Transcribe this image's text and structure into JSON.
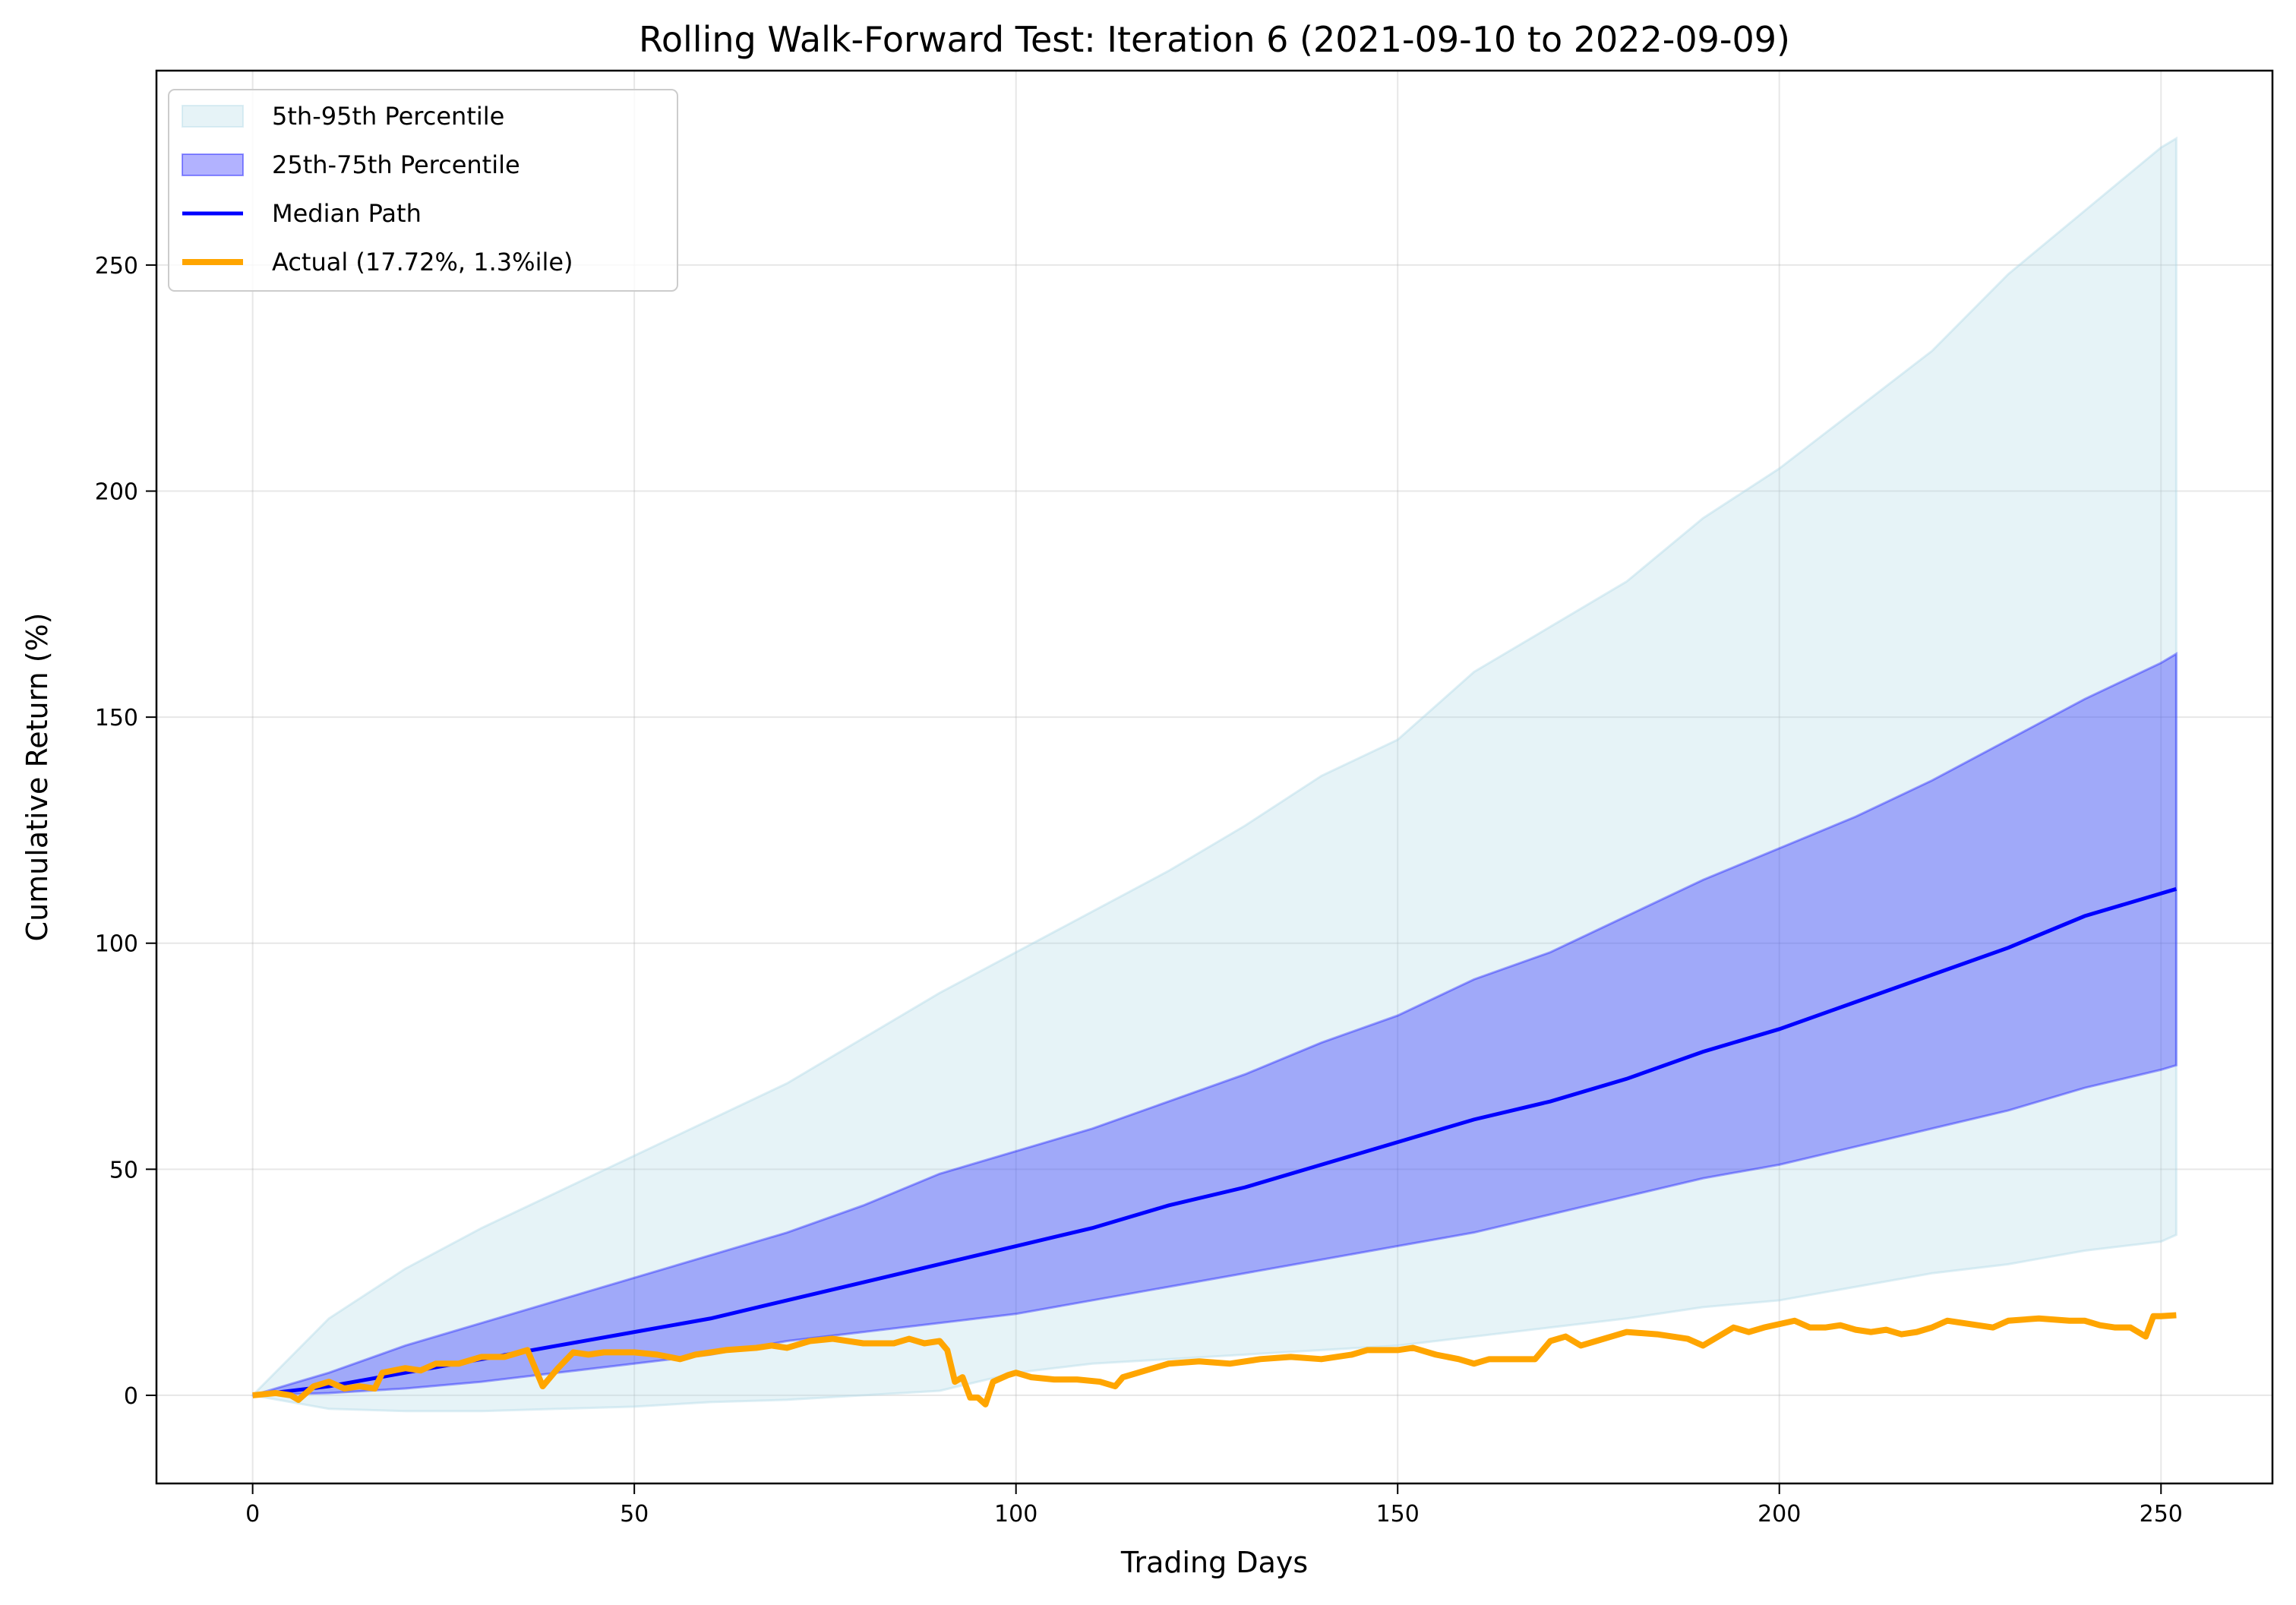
{
  "chart_data": {
    "type": "line",
    "title": "Rolling Walk-Forward Test: Iteration 6 (2021-09-10 to 2022-09-09)",
    "xlabel": "Trading Days",
    "ylabel": "Cumulative Return (%)",
    "xlim": [
      -12.6,
      264.6
    ],
    "ylim": [
      -19.5,
      293
    ],
    "xticks": [
      0,
      50,
      100,
      150,
      200,
      250
    ],
    "yticks": [
      0,
      50,
      100,
      150,
      200,
      250
    ],
    "grid": true,
    "legend_position": "top-left",
    "bands": {
      "x": [
        0,
        10,
        20,
        30,
        40,
        50,
        60,
        70,
        80,
        90,
        100,
        110,
        120,
        130,
        140,
        150,
        160,
        170,
        180,
        190,
        200,
        210,
        220,
        230,
        240,
        250,
        252
      ],
      "p95": [
        0,
        17,
        28,
        37,
        45,
        53,
        61,
        69,
        79,
        89,
        98,
        107,
        116,
        126,
        137,
        145,
        160,
        170,
        180,
        194,
        205,
        218,
        231,
        248,
        262,
        276,
        278
      ],
      "p75": [
        0,
        5,
        11,
        16,
        21,
        26,
        31,
        36,
        42,
        49,
        54,
        59,
        65,
        71,
        78,
        84,
        92,
        98,
        106,
        114,
        121,
        128,
        136,
        145,
        154,
        162,
        164
      ],
      "median": [
        0,
        2,
        5,
        8,
        11,
        14,
        17,
        21,
        25,
        29,
        33,
        37,
        42,
        46,
        51,
        56,
        61,
        65,
        70,
        76,
        81,
        87,
        93,
        99,
        106,
        111,
        112
      ],
      "p25": [
        0,
        0.5,
        1.5,
        3,
        5,
        7,
        9,
        12,
        14,
        16,
        18,
        21,
        24,
        27,
        30,
        33,
        36,
        40,
        44,
        48,
        51,
        55,
        59,
        63,
        68,
        72,
        73
      ],
      "p5": [
        0,
        -3,
        -3.5,
        -3.5,
        -3,
        -2.5,
        -1.5,
        -1,
        0,
        1,
        5,
        7,
        8,
        9,
        10,
        11,
        13,
        15,
        17,
        19.5,
        21,
        24,
        27,
        29,
        32,
        34,
        35.5
      ]
    },
    "actual": {
      "x": [
        0,
        3,
        5,
        6,
        8,
        10,
        12,
        14,
        16,
        17,
        20,
        22,
        24,
        27,
        30,
        33,
        36,
        37,
        38,
        40,
        42,
        44,
        46,
        50,
        53,
        56,
        58,
        62,
        66,
        68,
        70,
        73,
        76,
        80,
        84,
        86,
        88,
        90,
        91,
        92,
        93,
        94,
        95,
        96,
        97,
        99,
        100,
        102,
        105,
        108,
        111,
        113,
        114,
        116,
        118,
        120,
        124,
        128,
        132,
        136,
        140,
        144,
        146,
        150,
        152,
        155,
        158,
        160,
        162,
        165,
        168,
        170,
        172,
        174,
        176,
        178,
        180,
        184,
        188,
        190,
        192,
        194,
        196,
        198,
        202,
        204,
        206,
        208,
        210,
        212,
        214,
        216,
        218,
        220,
        222,
        224,
        226,
        228,
        230,
        234,
        238,
        240,
        242,
        244,
        246,
        248,
        249,
        250,
        252
      ],
      "y": [
        0,
        0.5,
        0,
        -1,
        2,
        3,
        1.5,
        2,
        1.5,
        5,
        6,
        5.5,
        7,
        7,
        8.5,
        8.5,
        10,
        6,
        2,
        6,
        9.5,
        9,
        9.5,
        9.5,
        9,
        8,
        9,
        10,
        10.5,
        11,
        10.5,
        12,
        12.5,
        11.5,
        11.5,
        12.5,
        11.5,
        12,
        10,
        3,
        4,
        -0.5,
        -0.5,
        -2,
        3,
        4.5,
        5,
        4,
        3.5,
        3.5,
        3,
        2,
        4,
        5,
        6,
        7,
        7.5,
        7,
        8,
        8.5,
        8,
        9,
        10,
        10,
        10.5,
        9,
        8,
        7,
        8,
        8,
        8,
        12,
        13,
        11,
        12,
        13,
        14,
        13.5,
        12.5,
        11,
        13,
        15,
        14,
        15,
        16.5,
        15,
        15,
        15.5,
        14.5,
        14,
        14.5,
        13.5,
        14,
        15,
        16.5,
        16,
        15.5,
        15,
        16.5,
        17,
        16.5,
        16.5,
        15.5,
        15,
        15,
        13,
        17.5,
        17.5,
        17.72
      ]
    },
    "legend": [
      {
        "label": "5th-95th Percentile",
        "kind": "patch",
        "color": "#add8e6"
      },
      {
        "label": "25th-75th Percentile",
        "kind": "patch",
        "color": "#0000ff"
      },
      {
        "label": "Median Path",
        "kind": "line",
        "color": "#0000ff"
      },
      {
        "label": "Actual (17.72%, 1.3%ile)",
        "kind": "line",
        "color": "#ffa500"
      }
    ],
    "colors": {
      "outer_band": "#add8e6",
      "inner_band": "#0000ff",
      "median": "#0000ff",
      "actual": "#ffa500"
    }
  }
}
